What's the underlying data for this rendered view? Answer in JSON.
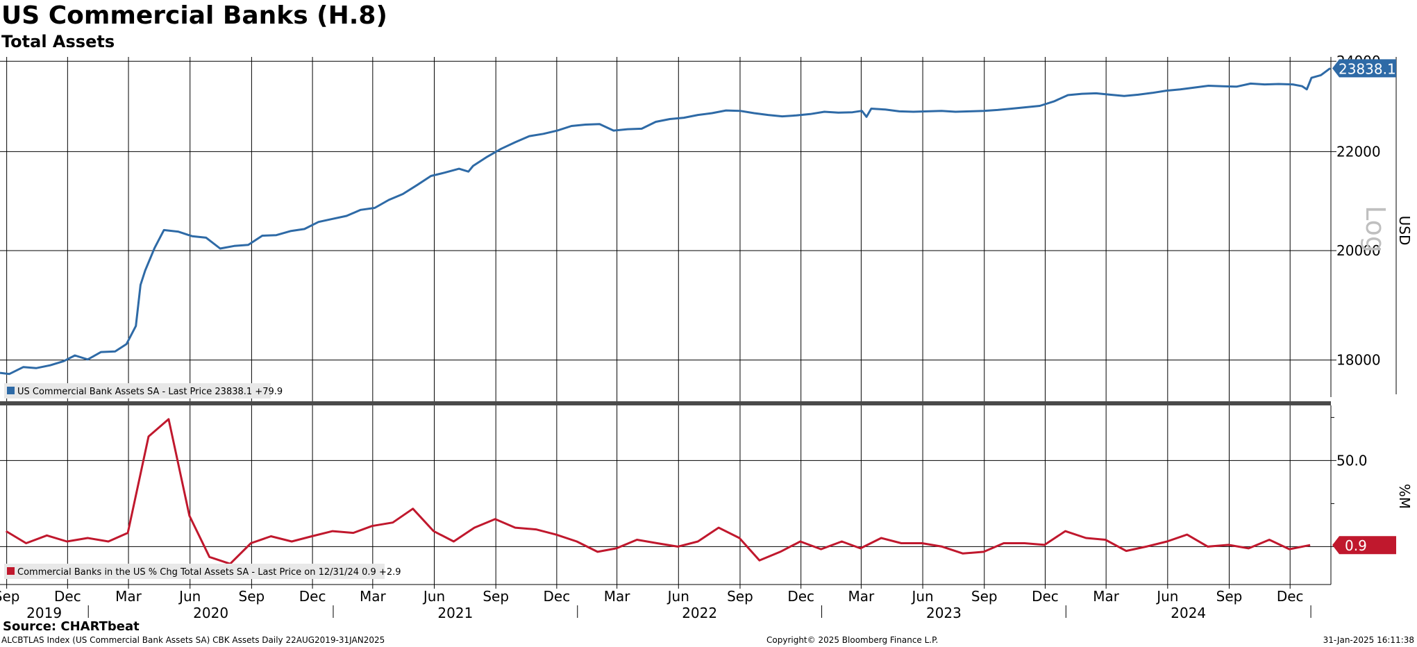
{
  "chart_data": {
    "title": "US Commercial Banks (H.8)",
    "subtitle": "Total Assets",
    "type": "line",
    "x_range": [
      "2019-08-22",
      "2025-01-31"
    ],
    "x_tick_labels": {
      "months": [
        "Sep",
        "Dec",
        "Mar",
        "Jun",
        "Sep",
        "Dec",
        "Mar",
        "Jun",
        "Sep",
        "Dec",
        "Mar",
        "Jun",
        "Sep",
        "Dec",
        "Mar",
        "Jun",
        "Sep",
        "Dec",
        "Mar",
        "Jun",
        "Sep",
        "Dec"
      ],
      "month_dates": [
        "2019-09-01",
        "2019-12-01",
        "2020-03-01",
        "2020-06-01",
        "2020-09-01",
        "2020-12-01",
        "2021-03-01",
        "2021-06-01",
        "2021-09-01",
        "2021-12-01",
        "2022-03-01",
        "2022-06-01",
        "2022-09-01",
        "2022-12-01",
        "2023-03-01",
        "2023-06-01",
        "2023-09-01",
        "2023-12-01",
        "2024-03-01",
        "2024-06-01",
        "2024-09-01",
        "2024-12-01"
      ],
      "years": [
        "2019",
        "2020",
        "2021",
        "2022",
        "2023",
        "2024"
      ]
    },
    "upper_panel": {
      "scale": "log",
      "scale_label": "Log",
      "unit": "USD",
      "y_ticks": [
        18000,
        20000,
        22000,
        24000
      ],
      "y_tick_labels": [
        "18000",
        "20000",
        "22000",
        "24000"
      ],
      "ylim": [
        17300,
        24100
      ],
      "grid": true,
      "series": [
        {
          "legend": "US Commercial Bank Assets SA - Last Price 23838.1  +79.9",
          "color": "#2e6aa6",
          "last_value_label": "23838.1",
          "points": [
            [
              "2019-08-22",
              17780
            ],
            [
              "2019-09-05",
              17760
            ],
            [
              "2019-09-26",
              17880
            ],
            [
              "2019-10-15",
              17860
            ],
            [
              "2019-11-05",
              17910
            ],
            [
              "2019-11-25",
              17980
            ],
            [
              "2019-12-12",
              18080
            ],
            [
              "2019-12-31",
              18010
            ],
            [
              "2020-01-20",
              18140
            ],
            [
              "2020-02-10",
              18150
            ],
            [
              "2020-02-27",
              18280
            ],
            [
              "2020-03-12",
              18600
            ],
            [
              "2020-03-19",
              19350
            ],
            [
              "2020-03-26",
              19620
            ],
            [
              "2020-04-09",
              20050
            ],
            [
              "2020-04-23",
              20400
            ],
            [
              "2020-05-14",
              20370
            ],
            [
              "2020-06-04",
              20280
            ],
            [
              "2020-06-25",
              20250
            ],
            [
              "2020-07-16",
              20040
            ],
            [
              "2020-08-06",
              20090
            ],
            [
              "2020-08-27",
              20110
            ],
            [
              "2020-09-17",
              20290
            ],
            [
              "2020-10-08",
              20300
            ],
            [
              "2020-10-29",
              20380
            ],
            [
              "2020-11-19",
              20420
            ],
            [
              "2020-12-10",
              20560
            ],
            [
              "2020-12-31",
              20620
            ],
            [
              "2021-01-21",
              20680
            ],
            [
              "2021-02-11",
              20800
            ],
            [
              "2021-03-04",
              20840
            ],
            [
              "2021-03-25",
              21000
            ],
            [
              "2021-04-15",
              21120
            ],
            [
              "2021-05-06",
              21300
            ],
            [
              "2021-05-27",
              21490
            ],
            [
              "2021-06-17",
              21560
            ],
            [
              "2021-07-08",
              21640
            ],
            [
              "2021-07-22",
              21580
            ],
            [
              "2021-07-29",
              21700
            ],
            [
              "2021-08-19",
              21890
            ],
            [
              "2021-09-09",
              22060
            ],
            [
              "2021-09-30",
              22200
            ],
            [
              "2021-10-21",
              22330
            ],
            [
              "2021-11-11",
              22380
            ],
            [
              "2021-12-02",
              22450
            ],
            [
              "2021-12-23",
              22550
            ],
            [
              "2022-01-13",
              22580
            ],
            [
              "2022-02-03",
              22590
            ],
            [
              "2022-02-24",
              22450
            ],
            [
              "2022-03-17",
              22480
            ],
            [
              "2022-04-07",
              22490
            ],
            [
              "2022-04-28",
              22640
            ],
            [
              "2022-05-19",
              22700
            ],
            [
              "2022-06-09",
              22730
            ],
            [
              "2022-06-30",
              22790
            ],
            [
              "2022-07-21",
              22830
            ],
            [
              "2022-08-11",
              22890
            ],
            [
              "2022-09-01",
              22880
            ],
            [
              "2022-09-22",
              22830
            ],
            [
              "2022-10-13",
              22790
            ],
            [
              "2022-11-03",
              22760
            ],
            [
              "2022-11-24",
              22780
            ],
            [
              "2022-12-15",
              22810
            ],
            [
              "2023-01-05",
              22860
            ],
            [
              "2023-01-26",
              22840
            ],
            [
              "2023-02-16",
              22850
            ],
            [
              "2023-03-02",
              22880
            ],
            [
              "2023-03-09",
              22750
            ],
            [
              "2023-03-16",
              22930
            ],
            [
              "2023-04-06",
              22910
            ],
            [
              "2023-04-27",
              22870
            ],
            [
              "2023-05-18",
              22860
            ],
            [
              "2023-06-08",
              22870
            ],
            [
              "2023-06-29",
              22880
            ],
            [
              "2023-07-20",
              22860
            ],
            [
              "2023-08-10",
              22870
            ],
            [
              "2023-08-31",
              22880
            ],
            [
              "2023-09-21",
              22900
            ],
            [
              "2023-10-12",
              22930
            ],
            [
              "2023-11-02",
              22960
            ],
            [
              "2023-11-23",
              22990
            ],
            [
              "2023-12-14",
              23090
            ],
            [
              "2024-01-04",
              23230
            ],
            [
              "2024-01-25",
              23260
            ],
            [
              "2024-02-15",
              23270
            ],
            [
              "2024-03-07",
              23240
            ],
            [
              "2024-03-28",
              23210
            ],
            [
              "2024-04-18",
              23240
            ],
            [
              "2024-05-09",
              23280
            ],
            [
              "2024-05-30",
              23330
            ],
            [
              "2024-06-20",
              23360
            ],
            [
              "2024-07-11",
              23400
            ],
            [
              "2024-08-01",
              23440
            ],
            [
              "2024-08-22",
              23430
            ],
            [
              "2024-09-12",
              23420
            ],
            [
              "2024-10-03",
              23490
            ],
            [
              "2024-10-24",
              23470
            ],
            [
              "2024-11-14",
              23480
            ],
            [
              "2024-12-05",
              23470
            ],
            [
              "2024-12-19",
              23430
            ],
            [
              "2024-12-26",
              23360
            ],
            [
              "2025-01-02",
              23620
            ],
            [
              "2025-01-16",
              23680
            ],
            [
              "2025-01-30",
              23838.1
            ]
          ]
        }
      ]
    },
    "lower_panel": {
      "unit": "%M",
      "y_ticks": [
        0,
        50
      ],
      "y_tick_labels": [
        "",
        "50.0"
      ],
      "ylim": [
        -22,
        82
      ],
      "grid": true,
      "series": [
        {
          "legend": "Commercial Banks in the US % Chg Total Assets SA - Last Price on 12/31/24  0.9  +2.9",
          "color": "#c0182d",
          "last_value_label": "0.9",
          "points": [
            [
              "2019-08-31",
              9.0
            ],
            [
              "2019-09-30",
              2.0
            ],
            [
              "2019-10-31",
              6.5
            ],
            [
              "2019-11-30",
              3.0
            ],
            [
              "2019-12-31",
              5.0
            ],
            [
              "2020-01-31",
              3.0
            ],
            [
              "2020-02-29",
              8.0
            ],
            [
              "2020-03-31",
              64.0
            ],
            [
              "2020-04-30",
              74.0
            ],
            [
              "2020-05-31",
              18.0
            ],
            [
              "2020-06-30",
              -6.0
            ],
            [
              "2020-07-31",
              -10.0
            ],
            [
              "2020-08-31",
              2.0
            ],
            [
              "2020-09-30",
              6.0
            ],
            [
              "2020-10-31",
              3.0
            ],
            [
              "2020-11-30",
              6.0
            ],
            [
              "2020-12-31",
              9.0
            ],
            [
              "2021-01-31",
              8.0
            ],
            [
              "2021-02-28",
              12.0
            ],
            [
              "2021-03-31",
              14.0
            ],
            [
              "2021-04-30",
              22.0
            ],
            [
              "2021-05-31",
              9.0
            ],
            [
              "2021-06-30",
              3.0
            ],
            [
              "2021-07-31",
              11.0
            ],
            [
              "2021-08-31",
              16.0
            ],
            [
              "2021-09-30",
              11.0
            ],
            [
              "2021-10-31",
              10.0
            ],
            [
              "2021-11-30",
              7.0
            ],
            [
              "2021-12-31",
              3.0
            ],
            [
              "2022-01-31",
              -3.0
            ],
            [
              "2022-02-28",
              -1.0
            ],
            [
              "2022-03-31",
              4.0
            ],
            [
              "2022-04-30",
              2.0
            ],
            [
              "2022-05-31",
              0.0
            ],
            [
              "2022-06-30",
              3.0
            ],
            [
              "2022-07-31",
              11.0
            ],
            [
              "2022-08-31",
              5.0
            ],
            [
              "2022-09-30",
              -8.0
            ],
            [
              "2022-10-31",
              -3.0
            ],
            [
              "2022-11-30",
              3.0
            ],
            [
              "2022-12-31",
              -1.5
            ],
            [
              "2023-01-31",
              3.0
            ],
            [
              "2023-02-28",
              -1.0
            ],
            [
              "2023-03-31",
              5.0
            ],
            [
              "2023-04-30",
              2.0
            ],
            [
              "2023-05-31",
              2.0
            ],
            [
              "2023-06-30",
              0.0
            ],
            [
              "2023-07-31",
              -4.0
            ],
            [
              "2023-08-31",
              -3.0
            ],
            [
              "2023-09-30",
              2.0
            ],
            [
              "2023-10-31",
              2.0
            ],
            [
              "2023-11-30",
              1.0
            ],
            [
              "2023-12-31",
              9.0
            ],
            [
              "2024-01-31",
              5.0
            ],
            [
              "2024-02-29",
              4.0
            ],
            [
              "2024-03-31",
              -2.5
            ],
            [
              "2024-04-30",
              0.0
            ],
            [
              "2024-05-31",
              3.0
            ],
            [
              "2024-06-30",
              7.0
            ],
            [
              "2024-07-31",
              0.0
            ],
            [
              "2024-08-31",
              1.0
            ],
            [
              "2024-09-30",
              -1.0
            ],
            [
              "2024-10-31",
              4.0
            ],
            [
              "2024-11-30",
              -1.5
            ],
            [
              "2024-12-31",
              0.9
            ]
          ]
        }
      ]
    }
  },
  "footer": {
    "source": "Source: CHARTbeat",
    "index_info": "ALCBTLAS Index (US Commercial Bank Assets SA) CBK Assets  Daily 22AUG2019-31JAN2025",
    "copyright": "Copyright© 2025 Bloomberg Finance L.P.",
    "timestamp": "31-Jan-2025 16:11:38"
  },
  "colors": {
    "upper_line": "#2e6aa6",
    "lower_line": "#c0182d",
    "grid": "#000000",
    "legend_bg": "#e8e8e8"
  }
}
